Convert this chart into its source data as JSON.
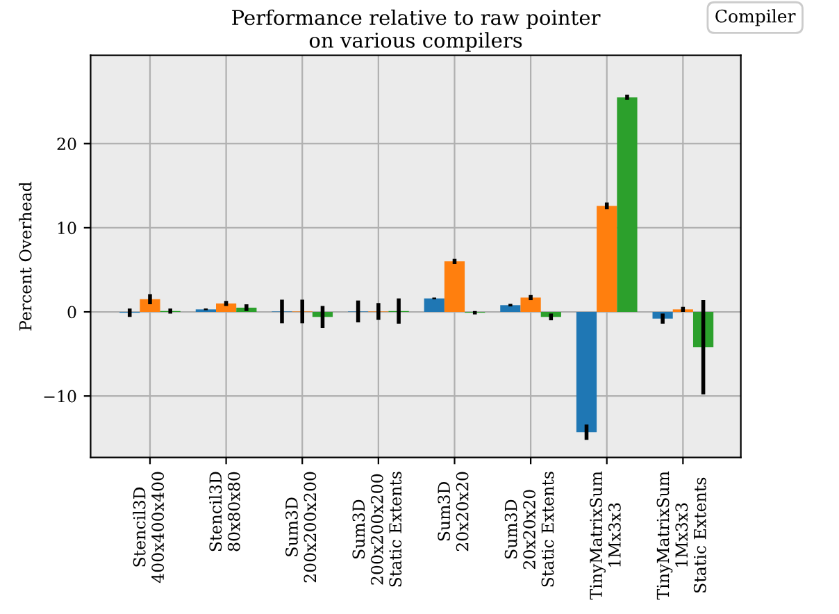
{
  "chart_data": {
    "type": "bar",
    "title": "Performance relative to raw pointer\non various compilers",
    "ylabel": "Percent Overhead",
    "legend_title": "Compiler",
    "grid": true,
    "categories": [
      "Stencil3D\n400x400x400",
      "Stencil3D\n80x80x80",
      "Sum3D\n200x200x200",
      "Sum3D\n200x200x200\nStatic Extents",
      "Sum3D\n20x20x20",
      "Sum3D\n20x20x20\nStatic Extents",
      "TinyMatrixSum\n1Mx3x3",
      "TinyMatrixSum\n1Mx3x3\nStatic Extents"
    ],
    "ylim": [
      -17.3,
      30.5
    ],
    "yticks": [
      {
        "value": -10,
        "label": "−10"
      },
      0,
      10,
      20
    ],
    "series": [
      {
        "color": "#1f77b4",
        "values": [
          -0.1,
          0.3,
          0.05,
          0.05,
          1.6,
          0.8,
          -14.3,
          -0.8
        ],
        "errors": [
          0.5,
          0.1,
          1.4,
          1.3,
          0.1,
          0.15,
          0.9,
          0.6
        ]
      },
      {
        "color": "#ff7f0e",
        "values": [
          1.5,
          1.0,
          0.05,
          0.05,
          6.0,
          1.7,
          12.6,
          0.3
        ],
        "errors": [
          0.6,
          0.3,
          1.4,
          1.0,
          0.3,
          0.3,
          0.4,
          0.3
        ]
      },
      {
        "color": "#2ca02c",
        "values": [
          0.1,
          0.5,
          -0.6,
          0.1,
          -0.1,
          -0.6,
          25.5,
          -4.2
        ],
        "errors": [
          0.3,
          0.4,
          1.3,
          1.5,
          0.2,
          0.4,
          0.3,
          5.6
        ]
      }
    ]
  }
}
